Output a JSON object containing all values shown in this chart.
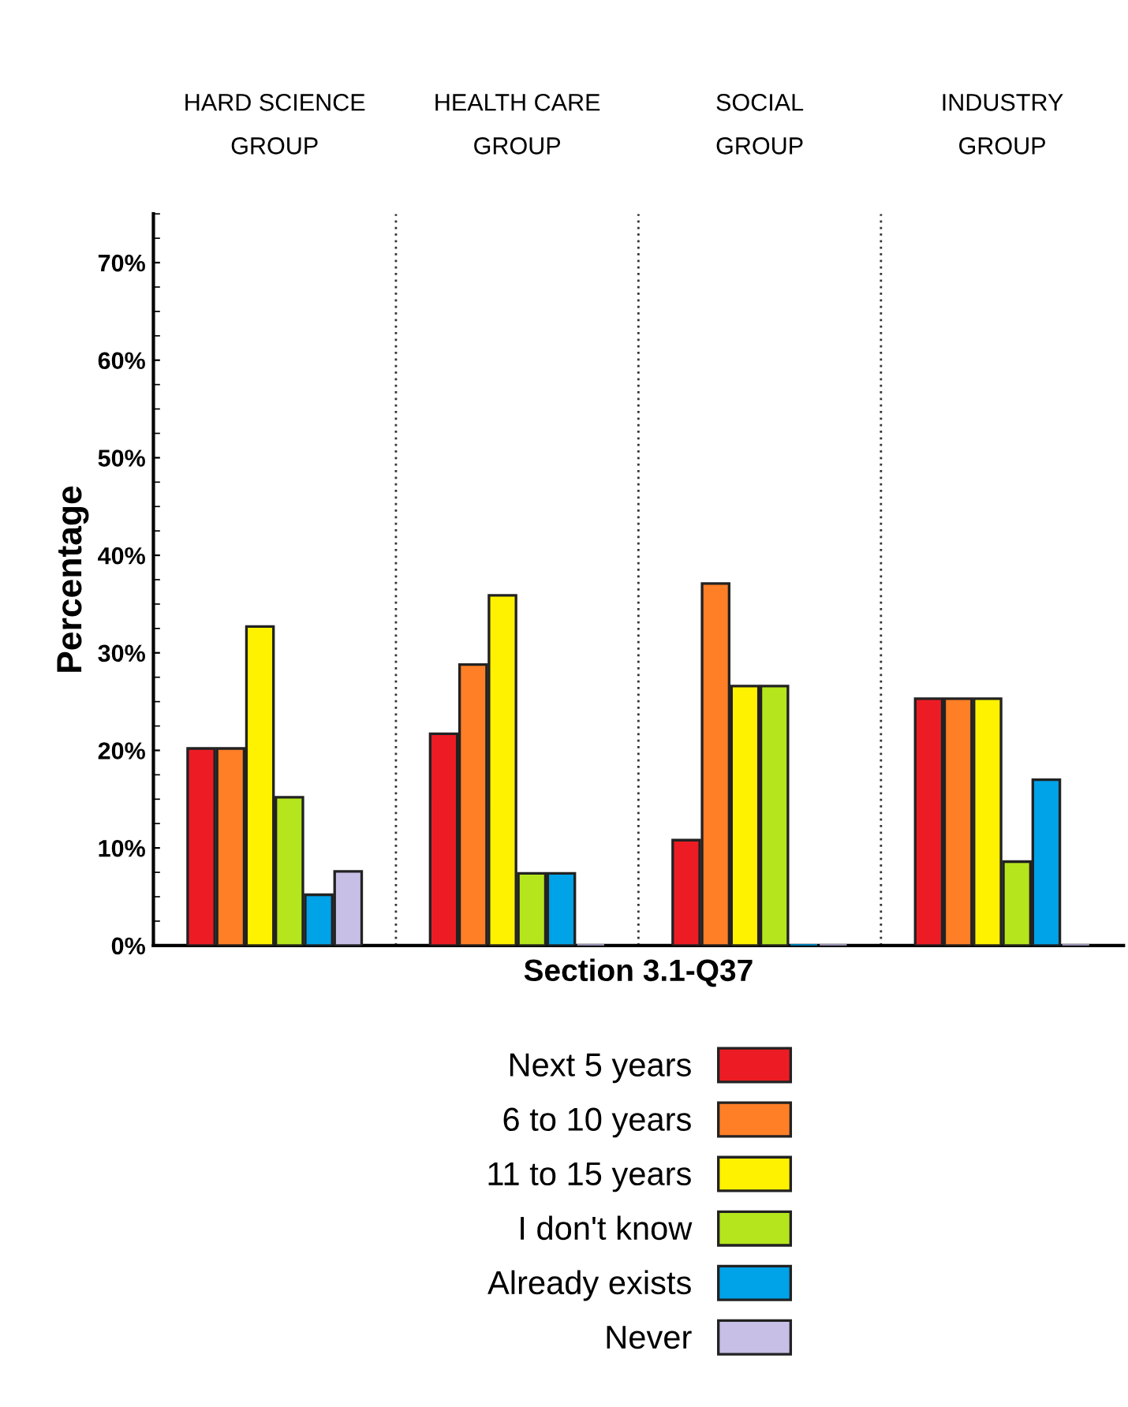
{
  "chart_data": {
    "type": "bar",
    "xlabel": "Section 3.1-Q37",
    "ylabel": "Percentage",
    "categories": [
      "HARD SCIENCE\nGROUP",
      "HEALTH CARE\nGROUP",
      "SOCIAL\nGROUP",
      "INDUSTRY\nGROUP"
    ],
    "series": [
      {
        "name": "Next 5 years",
        "color": "#ed1c24",
        "values": [
          20.2,
          21.7,
          10.8,
          25.3
        ]
      },
      {
        "name": "6 to 10 years",
        "color": "#ff7f27",
        "values": [
          20.2,
          28.8,
          37.1,
          25.3
        ]
      },
      {
        "name": "11 to 15 years",
        "color": "#fff200",
        "values": [
          32.7,
          35.9,
          26.6,
          25.3
        ]
      },
      {
        "name": "I don't know",
        "color": "#b5e61d",
        "values": [
          15.2,
          7.4,
          26.6,
          8.6
        ]
      },
      {
        "name": "Already exists",
        "color": "#00a2e8",
        "values": [
          5.2,
          7.4,
          0,
          17.0
        ]
      },
      {
        "name": "Never",
        "color": "#c8bfe7",
        "values": [
          7.6,
          0,
          0,
          0
        ]
      }
    ],
    "ylim": [
      0,
      75
    ],
    "yticks": [
      {
        "value": 0,
        "label": "0%"
      },
      {
        "value": 10,
        "label": "10%"
      },
      {
        "value": 20,
        "label": "20%"
      },
      {
        "value": 30,
        "label": "30%"
      },
      {
        "value": 40,
        "label": "40%"
      },
      {
        "value": 50,
        "label": "50%"
      },
      {
        "value": 60,
        "label": "60%"
      },
      {
        "value": 70,
        "label": "70%"
      }
    ],
    "grid": "x",
    "legend": "bottom"
  }
}
